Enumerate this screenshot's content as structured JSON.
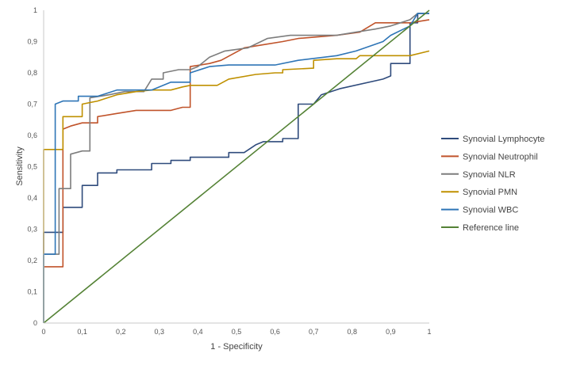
{
  "chart_data": {
    "type": "line",
    "title": "",
    "xlabel": "1 - Specificity",
    "ylabel": "Sensitivity",
    "xlim": [
      0,
      1
    ],
    "ylim": [
      0,
      1
    ],
    "x_ticks": [
      "0",
      "0,1",
      "0,2",
      "0,3",
      "0,4",
      "0,5",
      "0,6",
      "0,7",
      "0,8",
      "0,9",
      "1"
    ],
    "y_ticks": [
      "0",
      "0,1",
      "0,2",
      "0,3",
      "0,4",
      "0,5",
      "0,6",
      "0,7",
      "0,8",
      "0,9",
      "1"
    ],
    "grid": false,
    "legend_position": "right",
    "series": [
      {
        "name": "Synovial Lymphocyte",
        "color": "#2f4b7c",
        "step": true,
        "points": [
          [
            0,
            0
          ],
          [
            0,
            0.29
          ],
          [
            0.05,
            0.29
          ],
          [
            0.05,
            0.37
          ],
          [
            0.1,
            0.37
          ],
          [
            0.1,
            0.44
          ],
          [
            0.14,
            0.44
          ],
          [
            0.14,
            0.48
          ],
          [
            0.19,
            0.48
          ],
          [
            0.19,
            0.49
          ],
          [
            0.28,
            0.49
          ],
          [
            0.28,
            0.51
          ],
          [
            0.33,
            0.51
          ],
          [
            0.33,
            0.52
          ],
          [
            0.38,
            0.52
          ],
          [
            0.38,
            0.53
          ],
          [
            0.48,
            0.53
          ],
          [
            0.48,
            0.545
          ],
          [
            0.52,
            0.545
          ],
          [
            0.55,
            0.57
          ],
          [
            0.57,
            0.58
          ],
          [
            0.62,
            0.58
          ],
          [
            0.62,
            0.59
          ],
          [
            0.66,
            0.59
          ],
          [
            0.66,
            0.7
          ],
          [
            0.7,
            0.7
          ],
          [
            0.72,
            0.73
          ],
          [
            0.77,
            0.75
          ],
          [
            0.88,
            0.78
          ],
          [
            0.9,
            0.79
          ],
          [
            0.9,
            0.83
          ],
          [
            0.95,
            0.83
          ],
          [
            0.95,
            0.96
          ],
          [
            0.97,
            0.96
          ],
          [
            0.97,
            0.99
          ],
          [
            1,
            0.99
          ]
        ]
      },
      {
        "name": "Synovial Neutrophil",
        "color": "#c0532a",
        "step": true,
        "points": [
          [
            0,
            0
          ],
          [
            0,
            0.18
          ],
          [
            0.05,
            0.18
          ],
          [
            0.05,
            0.62
          ],
          [
            0.07,
            0.63
          ],
          [
            0.1,
            0.64
          ],
          [
            0.14,
            0.64
          ],
          [
            0.14,
            0.66
          ],
          [
            0.19,
            0.67
          ],
          [
            0.24,
            0.68
          ],
          [
            0.33,
            0.68
          ],
          [
            0.36,
            0.69
          ],
          [
            0.38,
            0.69
          ],
          [
            0.38,
            0.82
          ],
          [
            0.43,
            0.83
          ],
          [
            0.46,
            0.84
          ],
          [
            0.52,
            0.88
          ],
          [
            0.57,
            0.89
          ],
          [
            0.62,
            0.9
          ],
          [
            0.66,
            0.91
          ],
          [
            0.76,
            0.92
          ],
          [
            0.82,
            0.93
          ],
          [
            0.86,
            0.96
          ],
          [
            0.95,
            0.96
          ],
          [
            1,
            0.97
          ]
        ]
      },
      {
        "name": "Synovial NLR",
        "color": "#7d7d7d",
        "step": true,
        "points": [
          [
            0,
            0
          ],
          [
            0,
            0.22
          ],
          [
            0.04,
            0.22
          ],
          [
            0.04,
            0.43
          ],
          [
            0.07,
            0.43
          ],
          [
            0.07,
            0.54
          ],
          [
            0.1,
            0.55
          ],
          [
            0.12,
            0.55
          ],
          [
            0.12,
            0.72
          ],
          [
            0.17,
            0.73
          ],
          [
            0.21,
            0.74
          ],
          [
            0.26,
            0.74
          ],
          [
            0.28,
            0.78
          ],
          [
            0.31,
            0.78
          ],
          [
            0.31,
            0.8
          ],
          [
            0.35,
            0.81
          ],
          [
            0.38,
            0.81
          ],
          [
            0.4,
            0.82
          ],
          [
            0.43,
            0.85
          ],
          [
            0.47,
            0.87
          ],
          [
            0.53,
            0.88
          ],
          [
            0.58,
            0.91
          ],
          [
            0.64,
            0.92
          ],
          [
            0.76,
            0.92
          ],
          [
            0.81,
            0.93
          ],
          [
            0.86,
            0.94
          ],
          [
            0.9,
            0.95
          ],
          [
            0.95,
            0.97
          ],
          [
            0.97,
            0.99
          ],
          [
            1,
            0.99
          ]
        ]
      },
      {
        "name": "Synovial PMN",
        "color": "#bf9000",
        "step": true,
        "points": [
          [
            0,
            0
          ],
          [
            0,
            0.555
          ],
          [
            0.05,
            0.555
          ],
          [
            0.05,
            0.66
          ],
          [
            0.1,
            0.66
          ],
          [
            0.1,
            0.7
          ],
          [
            0.14,
            0.71
          ],
          [
            0.19,
            0.73
          ],
          [
            0.24,
            0.74
          ],
          [
            0.28,
            0.745
          ],
          [
            0.33,
            0.745
          ],
          [
            0.36,
            0.755
          ],
          [
            0.38,
            0.76
          ],
          [
            0.45,
            0.76
          ],
          [
            0.48,
            0.78
          ],
          [
            0.55,
            0.795
          ],
          [
            0.6,
            0.8
          ],
          [
            0.62,
            0.8
          ],
          [
            0.62,
            0.81
          ],
          [
            0.7,
            0.815
          ],
          [
            0.7,
            0.84
          ],
          [
            0.76,
            0.845
          ],
          [
            0.81,
            0.845
          ],
          [
            0.82,
            0.855
          ],
          [
            0.86,
            0.855
          ],
          [
            0.95,
            0.855
          ],
          [
            1,
            0.87
          ]
        ]
      },
      {
        "name": "Synovial WBC",
        "color": "#2e75b6",
        "step": true,
        "points": [
          [
            0,
            0
          ],
          [
            0,
            0.22
          ],
          [
            0.03,
            0.22
          ],
          [
            0.03,
            0.7
          ],
          [
            0.05,
            0.71
          ],
          [
            0.09,
            0.71
          ],
          [
            0.09,
            0.725
          ],
          [
            0.14,
            0.725
          ],
          [
            0.19,
            0.745
          ],
          [
            0.28,
            0.745
          ],
          [
            0.33,
            0.77
          ],
          [
            0.38,
            0.77
          ],
          [
            0.38,
            0.8
          ],
          [
            0.43,
            0.82
          ],
          [
            0.48,
            0.825
          ],
          [
            0.6,
            0.825
          ],
          [
            0.66,
            0.84
          ],
          [
            0.76,
            0.855
          ],
          [
            0.81,
            0.87
          ],
          [
            0.88,
            0.9
          ],
          [
            0.9,
            0.92
          ],
          [
            0.95,
            0.95
          ],
          [
            0.97,
            0.99
          ],
          [
            1,
            0.99
          ]
        ]
      },
      {
        "name": "Reference line",
        "color": "#548235",
        "step": false,
        "points": [
          [
            0,
            0
          ],
          [
            1,
            1
          ]
        ]
      }
    ]
  }
}
